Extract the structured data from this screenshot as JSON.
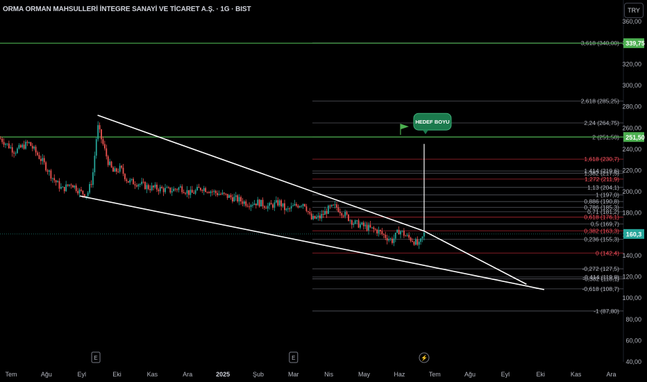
{
  "header": {
    "title": "ORMA ORMAN MAHSULLERİ İNTEGRE SANAYİ VE TİCARET A.Ş. · 1G · BIST",
    "currency_button": "TRY"
  },
  "colors": {
    "background": "#000000",
    "up": "#26a69a",
    "down": "#ef5350",
    "green_line": "#4caf50",
    "fib_gray": "#787b86",
    "fib_red": "#f23645",
    "trendline": "#ffffff"
  },
  "chart_data": {
    "type": "candlestick",
    "ylim": [
      40,
      366
    ],
    "yticks": [
      {
        "value": 360,
        "label": "360,00"
      },
      {
        "value": 340,
        "label": "340,00"
      },
      {
        "value": 320,
        "label": "320,00"
      },
      {
        "value": 300,
        "label": "300,00"
      },
      {
        "value": 280,
        "label": "280,00"
      },
      {
        "value": 260,
        "label": "260,00"
      },
      {
        "value": 240,
        "label": "240,00"
      },
      {
        "value": 220,
        "label": "220,00"
      },
      {
        "value": 200,
        "label": "200,00"
      },
      {
        "value": 180,
        "label": "180,00"
      },
      {
        "value": 160,
        "label": "160,00"
      },
      {
        "value": 140,
        "label": "140,00"
      },
      {
        "value": 120,
        "label": "120,00"
      },
      {
        "value": 100,
        "label": "100,00"
      },
      {
        "value": 80,
        "label": "80,00"
      },
      {
        "value": 60,
        "label": "60,00"
      },
      {
        "value": 40,
        "label": "40,00"
      }
    ],
    "xticks": [
      {
        "label": "Tem",
        "bold": false
      },
      {
        "label": "Ağu",
        "bold": false
      },
      {
        "label": "Eyl",
        "bold": false
      },
      {
        "label": "Eki",
        "bold": false
      },
      {
        "label": "Kas",
        "bold": false
      },
      {
        "label": "Ara",
        "bold": false
      },
      {
        "label": "2025",
        "bold": true
      },
      {
        "label": "Şub",
        "bold": false
      },
      {
        "label": "Mar",
        "bold": false
      },
      {
        "label": "Nis",
        "bold": false
      },
      {
        "label": "May",
        "bold": false
      },
      {
        "label": "Haz",
        "bold": false
      },
      {
        "label": "Tem",
        "bold": false
      },
      {
        "label": "Ağu",
        "bold": false
      },
      {
        "label": "Eyl",
        "bold": false
      },
      {
        "label": "Eki",
        "bold": false
      },
      {
        "label": "Kas",
        "bold": false
      },
      {
        "label": "Ara",
        "bold": false
      }
    ],
    "event_markers": [
      {
        "month_index": 2.4,
        "label": "E"
      },
      {
        "month_index": 8.0,
        "label": "E"
      },
      {
        "month_index": 11.7,
        "label": "⚡"
      }
    ],
    "price_path": [
      [
        -0.3,
        250
      ],
      [
        0.1,
        238
      ],
      [
        0.5,
        246
      ],
      [
        0.9,
        228
      ],
      [
        1.2,
        212
      ],
      [
        1.45,
        202
      ],
      [
        1.7,
        208
      ],
      [
        1.95,
        200
      ],
      [
        2.15,
        197
      ],
      [
        2.3,
        212
      ],
      [
        2.45,
        262
      ],
      [
        2.6,
        245
      ],
      [
        2.75,
        228
      ],
      [
        2.9,
        218
      ],
      [
        3.1,
        222
      ],
      [
        3.3,
        210
      ],
      [
        3.6,
        208
      ],
      [
        3.9,
        204
      ],
      [
        4.2,
        203
      ],
      [
        4.5,
        201
      ],
      [
        4.8,
        204
      ],
      [
        5.1,
        198
      ],
      [
        5.4,
        204
      ],
      [
        5.8,
        199
      ],
      [
        6.1,
        196
      ],
      [
        6.4,
        193
      ],
      [
        6.7,
        189
      ],
      [
        7.0,
        190
      ],
      [
        7.3,
        186
      ],
      [
        7.6,
        190
      ],
      [
        7.8,
        182
      ],
      [
        8.0,
        186
      ],
      [
        8.3,
        190
      ],
      [
        8.5,
        174
      ],
      [
        8.75,
        176
      ],
      [
        9.0,
        184
      ],
      [
        9.2,
        186
      ],
      [
        9.4,
        180
      ],
      [
        9.7,
        171
      ],
      [
        9.95,
        168
      ],
      [
        10.2,
        165
      ],
      [
        10.4,
        163
      ],
      [
        10.6,
        158
      ],
      [
        10.8,
        154
      ],
      [
        11.0,
        164
      ],
      [
        11.2,
        158
      ],
      [
        11.4,
        154
      ],
      [
        11.55,
        149
      ],
      [
        11.7,
        160.3
      ]
    ],
    "last_price": {
      "value": 160.3,
      "label": "160,3"
    },
    "horizontal_lines": [
      {
        "value": 339.75,
        "label": "339,75"
      },
      {
        "value": 251.5,
        "label": "251,50"
      }
    ],
    "fibonacci": [
      {
        "value": 340.0,
        "label": "3,618 (340,00)",
        "color": "gray"
      },
      {
        "value": 285.25,
        "label": "2,618 (285,25)",
        "color": "gray"
      },
      {
        "value": 264.75,
        "label": "2,24 (264,75)",
        "color": "gray"
      },
      {
        "value": 251.5,
        "label": "2 (251,50)",
        "color": "gray"
      },
      {
        "value": 230.7,
        "label": "1,618 (230,7)",
        "color": "red"
      },
      {
        "value": 219.6,
        "label": "1,414 (219,6)",
        "color": "gray"
      },
      {
        "value": 217.5,
        "label": "1,382 (217,5)",
        "color": "gray"
      },
      {
        "value": 211.9,
        "label": "1,272 (211,9)",
        "color": "red"
      },
      {
        "value": 204.1,
        "label": "1,13 (204,1)",
        "color": "gray"
      },
      {
        "value": 197.0,
        "label": "1 (197,0)",
        "color": "gray"
      },
      {
        "value": 190.8,
        "label": "0,886 (190,8)",
        "color": "gray"
      },
      {
        "value": 185.3,
        "label": "0,786 (185,3)",
        "color": "gray"
      },
      {
        "value": 181.2,
        "label": "0,71 (181,2)",
        "color": "gray"
      },
      {
        "value": 176.1,
        "label": "0,618 (176,1)",
        "color": "red"
      },
      {
        "value": 169.7,
        "label": "0,5 (169,7)",
        "color": "gray"
      },
      {
        "value": 163.3,
        "label": "0,382 (163,3)",
        "color": "red"
      },
      {
        "value": 155.3,
        "label": "0,236 (155,3)",
        "color": "gray"
      },
      {
        "value": 142.4,
        "label": "0 (142,4)",
        "color": "red"
      },
      {
        "value": 127.5,
        "label": "-0,272 (127,5)",
        "color": "gray"
      },
      {
        "value": 119.8,
        "label": "-0,414 (119,8)",
        "color": "gray"
      },
      {
        "value": 118.1,
        "label": "-0,382 (118,1)",
        "color": "gray"
      },
      {
        "value": 108.7,
        "label": "-0,618 (108,7)",
        "color": "gray"
      },
      {
        "value": 87.8,
        "label": "-1 (87,80)",
        "color": "gray"
      }
    ],
    "trendlines": [
      {
        "from": [
          2.45,
          272
        ],
        "to": [
          11.7,
          163
        ]
      },
      {
        "from": [
          1.95,
          196
        ],
        "to": [
          15.1,
          108
        ]
      },
      {
        "from": [
          11.7,
          163
        ],
        "to": [
          14.6,
          113
        ]
      }
    ],
    "target_projection": {
      "from": [
        11.7,
        163
      ],
      "to": [
        11.7,
        245
      ],
      "callout": "HEDEF BOYU"
    }
  }
}
